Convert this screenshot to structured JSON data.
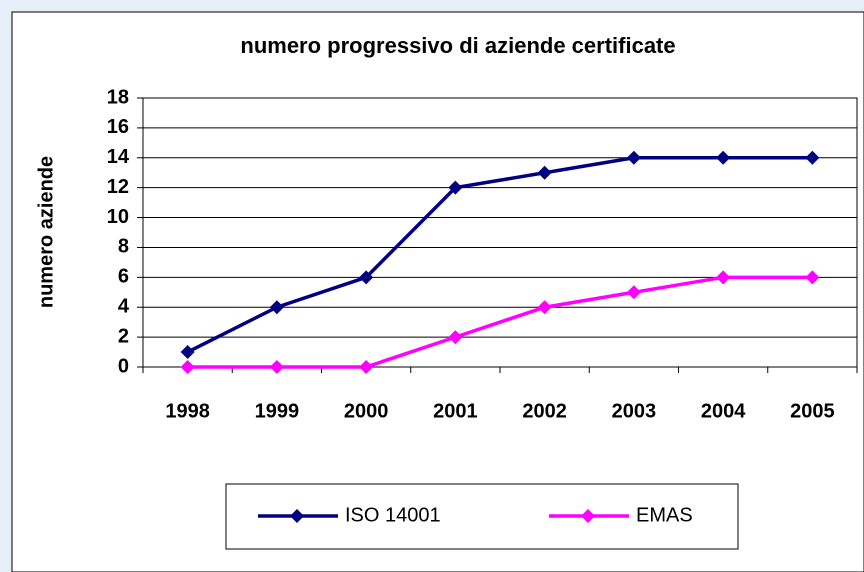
{
  "chart_data": {
    "type": "line",
    "title": "numero progressivo di aziende certificate",
    "y_label": "numero aziende",
    "categories": [
      "1998",
      "1999",
      "2000",
      "2001",
      "2002",
      "2003",
      "2004",
      "2005"
    ],
    "series": [
      {
        "name": "ISO 14001",
        "color": "#000080",
        "values": [
          1,
          4,
          6,
          12,
          13,
          14,
          14,
          14
        ]
      },
      {
        "name": "EMAS",
        "color": "#ff00ff",
        "values": [
          0,
          0,
          0,
          2,
          4,
          5,
          6,
          6
        ]
      }
    ],
    "ylim": [
      0,
      18
    ],
    "yticks": [
      0,
      2,
      4,
      6,
      8,
      10,
      12,
      14,
      16,
      18
    ],
    "grid": true,
    "legend": "bottom"
  }
}
